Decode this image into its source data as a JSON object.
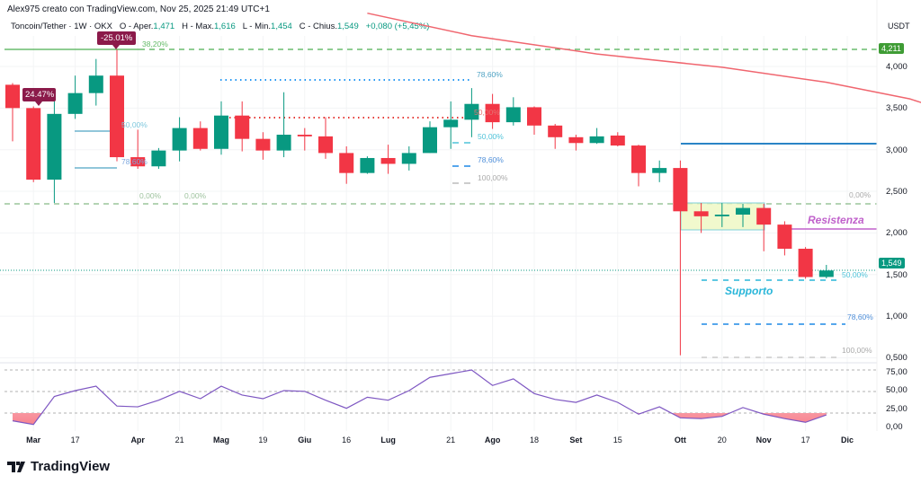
{
  "header": {
    "credit": "Alex975 creato con TradingView.com, Nov 25, 2025 21:49 UTC+1",
    "symbol": "Toncoin/Tether · 1W · OKX",
    "open_label": "O - Aper.",
    "open": "1,471",
    "high_label": "H - Max.",
    "high": "1,616",
    "low_label": "L - Min.",
    "low": "1,454",
    "close_label": "C - Chius.",
    "close": "1,549",
    "change": "+0,080 (+5,45%)"
  },
  "brand": "TradingView",
  "colors": {
    "up": "#089981",
    "down": "#f23645",
    "ma": "#f0666f",
    "rsi": "#7e57c2",
    "resistance": "#c061cb",
    "support": "#29b6d9",
    "level_tag_green": "#3f9c35"
  },
  "chart_data": {
    "type": "candlestick",
    "currency": "USDT",
    "interval": "1W",
    "ylim": [
      0.45,
      4.3
    ],
    "y_ticks": [
      "4,000",
      "3,500",
      "3,000",
      "2,500",
      "2,000",
      "1,500",
      "1,000",
      "0,500"
    ],
    "y_tick_values": [
      4.0,
      3.5,
      3.0,
      2.5,
      2.0,
      1.5,
      1.0,
      0.5
    ],
    "x_ticks": [
      {
        "label": "Mar",
        "date": "2025-03-03",
        "bold": true
      },
      {
        "label": "17",
        "date": "2025-03-17"
      },
      {
        "label": "Apr",
        "date": "2025-04-07",
        "bold": true
      },
      {
        "label": "21",
        "date": "2025-04-21"
      },
      {
        "label": "Mag",
        "date": "2025-05-05",
        "bold": true
      },
      {
        "label": "19",
        "date": "2025-05-19"
      },
      {
        "label": "Giu",
        "date": "2025-06-02",
        "bold": true
      },
      {
        "label": "16",
        "date": "2025-06-16"
      },
      {
        "label": "Lug",
        "date": "2025-06-30",
        "bold": true
      },
      {
        "label": "21",
        "date": "2025-07-21"
      },
      {
        "label": "Ago",
        "date": "2025-08-04",
        "bold": true
      },
      {
        "label": "18",
        "date": "2025-08-18"
      },
      {
        "label": "Set",
        "date": "2025-09-01",
        "bold": true
      },
      {
        "label": "15",
        "date": "2025-09-15"
      },
      {
        "label": "Ott",
        "date": "2025-10-06",
        "bold": true
      },
      {
        "label": "20",
        "date": "2025-10-20"
      },
      {
        "label": "Nov",
        "date": "2025-11-03",
        "bold": true
      },
      {
        "label": "17",
        "date": "2025-11-17"
      },
      {
        "label": "Dic",
        "date": "2025-12-01",
        "bold": true
      }
    ],
    "candles": [
      {
        "date": "2025-02-24",
        "o": 3.78,
        "h": 3.8,
        "l": 3.1,
        "c": 3.5,
        "rsi": 9
      },
      {
        "date": "2025-03-03",
        "o": 3.5,
        "h": 3.52,
        "l": 2.61,
        "c": 2.64,
        "rsi": 4
      },
      {
        "date": "2025-03-10",
        "o": 2.64,
        "h": 3.63,
        "l": 2.36,
        "c": 3.43,
        "rsi": 42
      },
      {
        "date": "2025-03-17",
        "o": 3.43,
        "h": 3.89,
        "l": 3.37,
        "c": 3.68,
        "rsi": 50
      },
      {
        "date": "2025-03-24",
        "o": 3.68,
        "h": 4.09,
        "l": 3.53,
        "c": 3.89,
        "rsi": 56
      },
      {
        "date": "2025-03-31",
        "o": 3.89,
        "h": 4.2,
        "l": 2.86,
        "c": 2.91,
        "rsi": 29
      },
      {
        "date": "2025-04-07",
        "o": 2.91,
        "h": 3.24,
        "l": 2.77,
        "c": 2.8,
        "rsi": 28
      },
      {
        "date": "2025-04-14",
        "o": 2.8,
        "h": 3.02,
        "l": 2.77,
        "c": 2.99,
        "rsi": 37
      },
      {
        "date": "2025-04-21",
        "o": 2.99,
        "h": 3.39,
        "l": 2.86,
        "c": 3.26,
        "rsi": 49
      },
      {
        "date": "2025-04-28",
        "o": 3.26,
        "h": 3.34,
        "l": 2.99,
        "c": 3.01,
        "rsi": 39
      },
      {
        "date": "2025-05-05",
        "o": 3.01,
        "h": 3.58,
        "l": 2.94,
        "c": 3.41,
        "rsi": 56
      },
      {
        "date": "2025-05-12",
        "o": 3.41,
        "h": 3.58,
        "l": 2.98,
        "c": 3.13,
        "rsi": 44
      },
      {
        "date": "2025-05-19",
        "o": 3.13,
        "h": 3.21,
        "l": 2.88,
        "c": 2.99,
        "rsi": 39
      },
      {
        "date": "2025-05-26",
        "o": 2.99,
        "h": 3.69,
        "l": 2.91,
        "c": 3.18,
        "rsi": 50
      },
      {
        "date": "2025-06-02",
        "o": 3.18,
        "h": 3.26,
        "l": 2.99,
        "c": 3.16,
        "rsi": 49
      },
      {
        "date": "2025-06-09",
        "o": 3.16,
        "h": 3.39,
        "l": 2.89,
        "c": 2.96,
        "rsi": 37
      },
      {
        "date": "2025-06-16",
        "o": 2.96,
        "h": 3.04,
        "l": 2.59,
        "c": 2.72,
        "rsi": 26
      },
      {
        "date": "2025-06-23",
        "o": 2.72,
        "h": 2.92,
        "l": 2.71,
        "c": 2.9,
        "rsi": 41
      },
      {
        "date": "2025-06-30",
        "o": 2.9,
        "h": 3.06,
        "l": 2.71,
        "c": 2.83,
        "rsi": 37
      },
      {
        "date": "2025-07-07",
        "o": 2.83,
        "h": 3.04,
        "l": 2.75,
        "c": 2.96,
        "rsi": 50
      },
      {
        "date": "2025-07-14",
        "o": 2.96,
        "h": 3.34,
        "l": 2.96,
        "c": 3.27,
        "rsi": 68
      },
      {
        "date": "2025-07-21",
        "o": 3.27,
        "h": 3.58,
        "l": 3.01,
        "c": 3.36,
        "rsi": 73
      },
      {
        "date": "2025-07-28",
        "o": 3.36,
        "h": 3.74,
        "l": 3.15,
        "c": 3.55,
        "rsi": 78
      },
      {
        "date": "2025-08-04",
        "o": 3.55,
        "h": 3.67,
        "l": 3.25,
        "c": 3.33,
        "rsi": 57
      },
      {
        "date": "2025-08-11",
        "o": 3.33,
        "h": 3.63,
        "l": 3.29,
        "c": 3.51,
        "rsi": 66
      },
      {
        "date": "2025-08-18",
        "o": 3.51,
        "h": 3.52,
        "l": 3.18,
        "c": 3.29,
        "rsi": 46
      },
      {
        "date": "2025-08-25",
        "o": 3.29,
        "h": 3.31,
        "l": 3.01,
        "c": 3.15,
        "rsi": 38
      },
      {
        "date": "2025-09-01",
        "o": 3.15,
        "h": 3.18,
        "l": 2.99,
        "c": 3.08,
        "rsi": 34
      },
      {
        "date": "2025-09-08",
        "o": 3.08,
        "h": 3.26,
        "l": 3.07,
        "c": 3.16,
        "rsi": 44
      },
      {
        "date": "2025-09-15",
        "o": 3.17,
        "h": 3.21,
        "l": 3.04,
        "c": 3.05,
        "rsi": 34
      },
      {
        "date": "2025-09-22",
        "o": 3.05,
        "h": 3.06,
        "l": 2.56,
        "c": 2.72,
        "rsi": 18
      },
      {
        "date": "2025-09-29",
        "o": 2.72,
        "h": 2.87,
        "l": 2.61,
        "c": 2.78,
        "rsi": 28
      },
      {
        "date": "2025-10-06",
        "o": 2.78,
        "h": 2.87,
        "l": 0.53,
        "c": 2.26,
        "rsi": 13
      },
      {
        "date": "2025-10-13",
        "o": 2.26,
        "h": 2.36,
        "l": 2.0,
        "c": 2.2,
        "rsi": 12
      },
      {
        "date": "2025-10-20",
        "o": 2.2,
        "h": 2.36,
        "l": 2.07,
        "c": 2.22,
        "rsi": 15
      },
      {
        "date": "2025-10-27",
        "o": 2.22,
        "h": 2.35,
        "l": 2.07,
        "c": 2.3,
        "rsi": 27
      },
      {
        "date": "2025-11-03",
        "o": 2.3,
        "h": 2.35,
        "l": 1.78,
        "c": 2.1,
        "rsi": 18
      },
      {
        "date": "2025-11-10",
        "o": 2.1,
        "h": 2.14,
        "l": 1.73,
        "c": 1.81,
        "rsi": 12
      },
      {
        "date": "2025-11-17",
        "o": 1.81,
        "h": 1.83,
        "l": 1.45,
        "c": 1.47,
        "rsi": 7
      },
      {
        "date": "2025-11-24",
        "o": 1.471,
        "h": 1.616,
        "l": 1.454,
        "c": 1.549,
        "rsi": 17
      }
    ],
    "moving_average": [
      {
        "date": "2025-06-23",
        "v": 4.64
      },
      {
        "date": "2025-07-28",
        "v": 4.37
      },
      {
        "date": "2025-09-08",
        "v": 4.15
      },
      {
        "date": "2025-10-20",
        "v": 3.99
      },
      {
        "date": "2025-11-24",
        "v": 3.81
      },
      {
        "date": "2025-12-22",
        "v": 3.61
      },
      {
        "date": "2026-01-19",
        "v": 3.29
      }
    ],
    "rsi_axis": {
      "ticks": [
        "75,00",
        "50,00",
        "25,00",
        "0,00"
      ],
      "tick_values": [
        75,
        50,
        25,
        0
      ]
    },
    "last_price_tag": "1,549",
    "level_tag": "4,211"
  },
  "annotations": {
    "pct_up": "24.47%",
    "pct_down": "-25.01%",
    "fib_382": "38,20%",
    "fib_786_top": "78,60%",
    "fib_50_mid": "50,00%",
    "fib_50_left": "50,00%",
    "fib_786_left": "78,60%",
    "fib_0_left_a": "0,00%",
    "fib_0_left_b": "0,00%",
    "fib_50_b": "50,00%",
    "fib_786_b": "78,60%",
    "fib_100_b": "100,00%",
    "fib_0_right": "0,00%",
    "fib_50_right": "50,00%",
    "fib_786_right": "78,60%",
    "fib_100_right": "100,00%",
    "resistance": "Resistenza",
    "support": "Supporto"
  }
}
